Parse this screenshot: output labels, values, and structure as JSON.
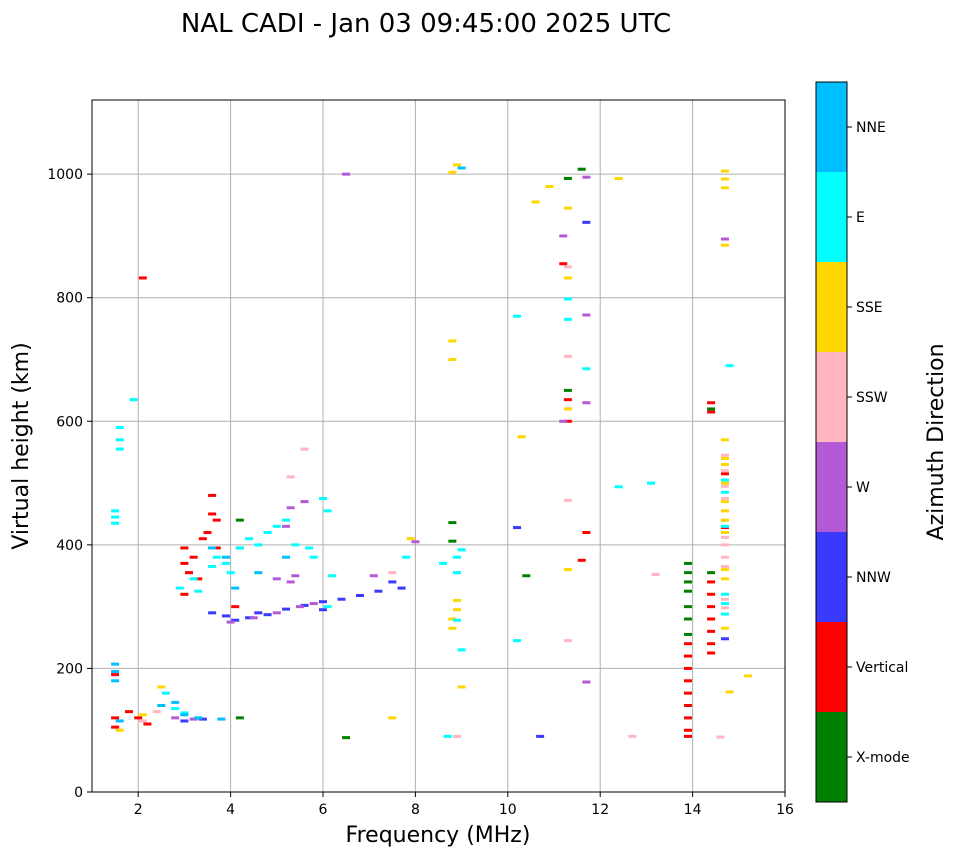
{
  "chart_data": {
    "type": "scatter",
    "title": "NAL CADI - Jan 03 09:45:00 2025 UTC",
    "xlabel": "Frequency (MHz)",
    "ylabel": "Virtual height (km)",
    "xlim": [
      1,
      16
    ],
    "ylim": [
      0,
      1120
    ],
    "xticks": [
      2,
      4,
      6,
      8,
      10,
      12,
      14,
      16
    ],
    "yticks": [
      0,
      200,
      400,
      600,
      800,
      1000
    ],
    "grid": true,
    "colorbar": {
      "label": "Azimuth Direction",
      "categories": [
        "X-mode",
        "Vertical",
        "NNW",
        "W",
        "SSW",
        "SSE",
        "E",
        "NNE"
      ],
      "colors": [
        "#008000",
        "#ff0000",
        "#3a3aff",
        "#b45ad6",
        "#ffb6c1",
        "#ffd700",
        "#00ffff",
        "#00bfff"
      ]
    },
    "series": [
      {
        "name": "X-mode",
        "points": [
          [
            4.2,
            120
          ],
          [
            4.2,
            440
          ],
          [
            6.5,
            88
          ],
          [
            8.8,
            436
          ],
          [
            8.8,
            406
          ],
          [
            10.4,
            350
          ],
          [
            11.3,
            650
          ],
          [
            11.6,
            1008
          ],
          [
            11.3,
            993
          ],
          [
            13.9,
            370
          ],
          [
            13.9,
            355
          ],
          [
            13.9,
            340
          ],
          [
            13.9,
            325
          ],
          [
            13.9,
            300
          ],
          [
            13.9,
            280
          ],
          [
            13.9,
            255
          ],
          [
            14.4,
            620
          ],
          [
            14.4,
            355
          ]
        ]
      },
      {
        "name": "Vertical",
        "points": [
          [
            1.5,
            190
          ],
          [
            1.5,
            120
          ],
          [
            1.5,
            105
          ],
          [
            1.8,
            130
          ],
          [
            2.0,
            120
          ],
          [
            2.2,
            110
          ],
          [
            2.1,
            832
          ],
          [
            3.0,
            395
          ],
          [
            3.0,
            370
          ],
          [
            3.1,
            355
          ],
          [
            3.2,
            380
          ],
          [
            3.4,
            410
          ],
          [
            3.5,
            420
          ],
          [
            3.6,
            450
          ],
          [
            3.6,
            480
          ],
          [
            3.7,
            440
          ],
          [
            3.3,
            345
          ],
          [
            3.0,
            320
          ],
          [
            3.7,
            395
          ],
          [
            4.1,
            300
          ],
          [
            4.2,
            395
          ],
          [
            11.2,
            855
          ],
          [
            11.3,
            635
          ],
          [
            11.3,
            600
          ],
          [
            11.7,
            420
          ],
          [
            11.6,
            375
          ],
          [
            13.9,
            240
          ],
          [
            13.9,
            220
          ],
          [
            13.9,
            200
          ],
          [
            13.9,
            180
          ],
          [
            13.9,
            160
          ],
          [
            13.9,
            140
          ],
          [
            13.9,
            120
          ],
          [
            13.9,
            100
          ],
          [
            13.9,
            90
          ],
          [
            14.4,
            630
          ],
          [
            14.4,
            615
          ],
          [
            14.4,
            340
          ],
          [
            14.4,
            320
          ],
          [
            14.4,
            300
          ],
          [
            14.4,
            280
          ],
          [
            14.4,
            260
          ],
          [
            14.4,
            240
          ],
          [
            14.4,
            225
          ],
          [
            14.7,
            428
          ],
          [
            14.7,
            515
          ]
        ]
      },
      {
        "name": "NNW",
        "points": [
          [
            3.0,
            115
          ],
          [
            3.4,
            118
          ],
          [
            3.6,
            290
          ],
          [
            3.9,
            285
          ],
          [
            4.1,
            278
          ],
          [
            4.4,
            282
          ],
          [
            4.8,
            287
          ],
          [
            5.2,
            296
          ],
          [
            5.6,
            302
          ],
          [
            6.0,
            308
          ],
          [
            6.4,
            312
          ],
          [
            6.8,
            318
          ],
          [
            7.2,
            325
          ],
          [
            7.5,
            340
          ],
          [
            7.7,
            330
          ],
          [
            6.0,
            295
          ],
          [
            4.6,
            290
          ],
          [
            10.2,
            428
          ],
          [
            10.7,
            90
          ],
          [
            11.7,
            922
          ],
          [
            14.7,
            248
          ]
        ]
      },
      {
        "name": "W",
        "points": [
          [
            2.8,
            120
          ],
          [
            3.2,
            118
          ],
          [
            4.0,
            275
          ],
          [
            4.5,
            282
          ],
          [
            5.0,
            290
          ],
          [
            5.5,
            300
          ],
          [
            5.8,
            305
          ],
          [
            5.0,
            345
          ],
          [
            5.3,
            340
          ],
          [
            5.4,
            350
          ],
          [
            5.3,
            460
          ],
          [
            5.6,
            470
          ],
          [
            5.2,
            430
          ],
          [
            6.5,
            1000
          ],
          [
            7.1,
            350
          ],
          [
            8.0,
            405
          ],
          [
            11.2,
            900
          ],
          [
            11.7,
            995
          ],
          [
            11.7,
            772
          ],
          [
            11.7,
            630
          ],
          [
            11.2,
            600
          ],
          [
            11.7,
            178
          ],
          [
            14.7,
            895
          ]
        ]
      },
      {
        "name": "SSW",
        "points": [
          [
            2.1,
            115
          ],
          [
            2.4,
            130
          ],
          [
            5.3,
            510
          ],
          [
            5.6,
            555
          ],
          [
            7.5,
            355
          ],
          [
            8.9,
            90
          ],
          [
            11.3,
            245
          ],
          [
            11.3,
            472
          ],
          [
            11.3,
            705
          ],
          [
            11.3,
            850
          ],
          [
            12.7,
            90
          ],
          [
            13.2,
            352
          ],
          [
            14.6,
            89
          ],
          [
            14.7,
            298
          ],
          [
            14.7,
            312
          ],
          [
            14.7,
            365
          ],
          [
            14.7,
            380
          ],
          [
            14.7,
            400
          ],
          [
            14.7,
            412
          ],
          [
            14.7,
            440
          ],
          [
            14.7,
            455
          ],
          [
            14.7,
            475
          ],
          [
            14.7,
            495
          ],
          [
            14.7,
            520
          ],
          [
            14.7,
            545
          ]
        ]
      },
      {
        "name": "SSE",
        "points": [
          [
            1.6,
            100
          ],
          [
            2.1,
            125
          ],
          [
            2.5,
            170
          ],
          [
            7.5,
            120
          ],
          [
            7.9,
            410
          ],
          [
            8.8,
            280
          ],
          [
            8.8,
            265
          ],
          [
            8.9,
            295
          ],
          [
            8.9,
            310
          ],
          [
            9.0,
            170
          ],
          [
            8.9,
            1015
          ],
          [
            8.8,
            1003
          ],
          [
            8.8,
            730
          ],
          [
            8.8,
            700
          ],
          [
            10.3,
            575
          ],
          [
            10.6,
            955
          ],
          [
            10.9,
            980
          ],
          [
            11.3,
            945
          ],
          [
            11.3,
            832
          ],
          [
            11.3,
            620
          ],
          [
            11.3,
            360
          ],
          [
            12.4,
            993
          ],
          [
            14.7,
            265
          ],
          [
            14.7,
            345
          ],
          [
            14.7,
            360
          ],
          [
            14.7,
            420
          ],
          [
            14.7,
            440
          ],
          [
            14.7,
            455
          ],
          [
            14.7,
            470
          ],
          [
            14.7,
            500
          ],
          [
            14.7,
            530
          ],
          [
            14.7,
            540
          ],
          [
            14.7,
            570
          ],
          [
            14.7,
            885
          ],
          [
            14.7,
            978
          ],
          [
            14.7,
            992
          ],
          [
            14.7,
            1005
          ],
          [
            14.8,
            162
          ],
          [
            15.2,
            188
          ]
        ]
      },
      {
        "name": "E",
        "points": [
          [
            1.5,
            435
          ],
          [
            1.5,
            445
          ],
          [
            1.5,
            455
          ],
          [
            1.6,
            555
          ],
          [
            1.6,
            590
          ],
          [
            1.6,
            570
          ],
          [
            1.9,
            635
          ],
          [
            2.6,
            160
          ],
          [
            2.8,
            135
          ],
          [
            3.0,
            128
          ],
          [
            2.9,
            330
          ],
          [
            3.2,
            345
          ],
          [
            3.3,
            325
          ],
          [
            3.6,
            365
          ],
          [
            3.7,
            380
          ],
          [
            3.9,
            370
          ],
          [
            4.0,
            355
          ],
          [
            4.2,
            395
          ],
          [
            4.4,
            410
          ],
          [
            4.6,
            400
          ],
          [
            4.8,
            420
          ],
          [
            5.0,
            430
          ],
          [
            5.2,
            440
          ],
          [
            5.4,
            400
          ],
          [
            5.7,
            395
          ],
          [
            5.8,
            380
          ],
          [
            6.0,
            475
          ],
          [
            6.1,
            455
          ],
          [
            6.2,
            350
          ],
          [
            6.1,
            300
          ],
          [
            7.8,
            380
          ],
          [
            8.6,
            370
          ],
          [
            8.9,
            355
          ],
          [
            8.9,
            380
          ],
          [
            8.9,
            278
          ],
          [
            9.0,
            230
          ],
          [
            9.0,
            392
          ],
          [
            8.7,
            90
          ],
          [
            10.2,
            770
          ],
          [
            10.2,
            245
          ],
          [
            11.3,
            765
          ],
          [
            11.3,
            798
          ],
          [
            11.7,
            685
          ],
          [
            12.4,
            494
          ],
          [
            13.1,
            500
          ],
          [
            14.7,
            288
          ],
          [
            14.7,
            305
          ],
          [
            14.7,
            320
          ],
          [
            14.7,
            430
          ],
          [
            14.7,
            485
          ],
          [
            14.7,
            505
          ],
          [
            14.8,
            690
          ]
        ]
      },
      {
        "name": "NNE",
        "points": [
          [
            1.5,
            195
          ],
          [
            1.5,
            207
          ],
          [
            1.5,
            180
          ],
          [
            1.6,
            115
          ],
          [
            2.5,
            140
          ],
          [
            2.8,
            145
          ],
          [
            3.0,
            125
          ],
          [
            3.3,
            120
          ],
          [
            3.8,
            118
          ],
          [
            3.6,
            395
          ],
          [
            3.9,
            380
          ],
          [
            4.1,
            330
          ],
          [
            4.6,
            355
          ],
          [
            5.2,
            380
          ],
          [
            9.0,
            1010
          ]
        ]
      }
    ]
  }
}
